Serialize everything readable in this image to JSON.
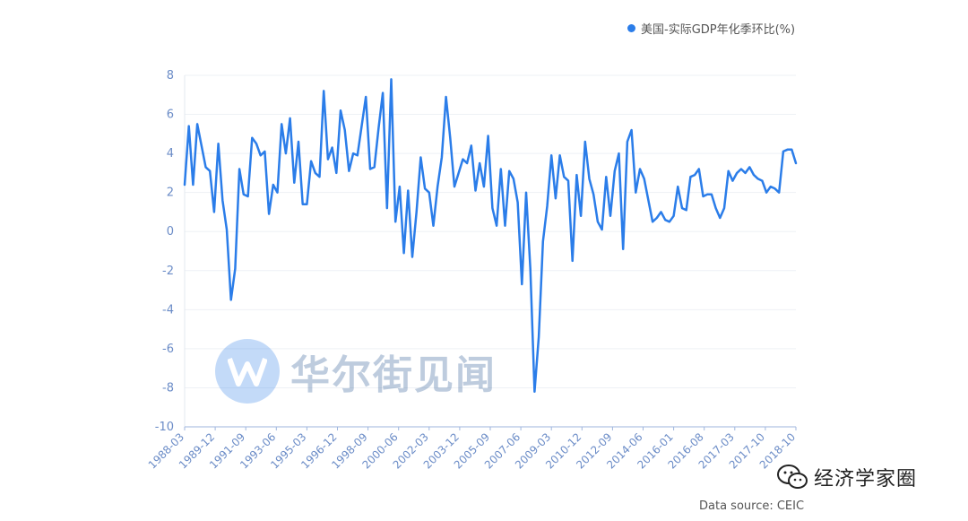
{
  "chart_data": {
    "type": "line",
    "title": "",
    "xlabel": "",
    "ylabel": "",
    "ylim": [
      -10,
      8
    ],
    "yticks": [
      8,
      6,
      4,
      2,
      0,
      -2,
      -4,
      -6,
      -8,
      -10
    ],
    "grid": true,
    "legend_position": "top-right",
    "xtick_labels": [
      "1988-03",
      "1989-12",
      "1991-09",
      "1993-06",
      "1995-03",
      "1996-12",
      "1998-09",
      "2000-06",
      "2002-03",
      "2003-12",
      "2005-09",
      "2007-06",
      "2009-03",
      "2010-12",
      "2012-09",
      "2014-06",
      "2016-01",
      "2016-08",
      "2017-03",
      "2017-10",
      "2018-10"
    ],
    "series": [
      {
        "name": "美国-实际GDP年化季环比(%)",
        "color": "#2b7de9",
        "values": [
          2.4,
          5.4,
          2.4,
          5.5,
          4.4,
          3.3,
          3.1,
          1.0,
          4.5,
          1.6,
          0.1,
          -3.5,
          -1.9,
          3.2,
          1.9,
          1.8,
          4.8,
          4.5,
          3.9,
          4.1,
          0.9,
          2.4,
          2.0,
          5.5,
          4.0,
          5.8,
          2.5,
          4.6,
          1.4,
          1.4,
          3.6,
          3.0,
          2.8,
          7.2,
          3.7,
          4.3,
          3.0,
          6.2,
          5.2,
          3.1,
          4.0,
          3.9,
          5.4,
          6.9,
          3.2,
          3.3,
          5.3,
          7.1,
          1.2,
          7.8,
          0.5,
          2.3,
          -1.1,
          2.1,
          -1.3,
          1.0,
          3.8,
          2.2,
          2.0,
          0.3,
          2.3,
          3.8,
          6.9,
          4.8,
          2.3,
          3.0,
          3.7,
          3.5,
          4.4,
          2.1,
          3.5,
          2.3,
          4.9,
          1.2,
          0.3,
          3.2,
          0.3,
          3.1,
          2.7,
          1.5,
          -2.7,
          2.0,
          -1.9,
          -8.2,
          -5.4,
          -0.5,
          1.3,
          3.9,
          1.7,
          3.9,
          2.8,
          2.6,
          -1.5,
          2.9,
          0.8,
          4.6,
          2.7,
          1.9,
          0.5,
          0.1,
          2.8,
          0.8,
          3.1,
          4.0,
          -0.9,
          4.6,
          5.2,
          2.0,
          3.2,
          2.7,
          1.6,
          0.5,
          0.7,
          1.0,
          0.6,
          0.5,
          0.8,
          2.3,
          1.2,
          1.1,
          2.8,
          2.9,
          3.2,
          1.8,
          1.9,
          1.9,
          1.2,
          0.7,
          1.2,
          3.1,
          2.6,
          3.0,
          3.2,
          3.0,
          3.3,
          2.9,
          2.7,
          2.6,
          2.0,
          2.3,
          2.2,
          2.0,
          4.1,
          4.2,
          4.2,
          3.5
        ]
      }
    ]
  },
  "legend": {
    "label": "美国-实际GDP年化季环比(%)"
  },
  "source": "Data source: CEIC",
  "watermark": {
    "text": "华尔街见闻"
  },
  "wechat": {
    "text": "经济学家圈"
  }
}
